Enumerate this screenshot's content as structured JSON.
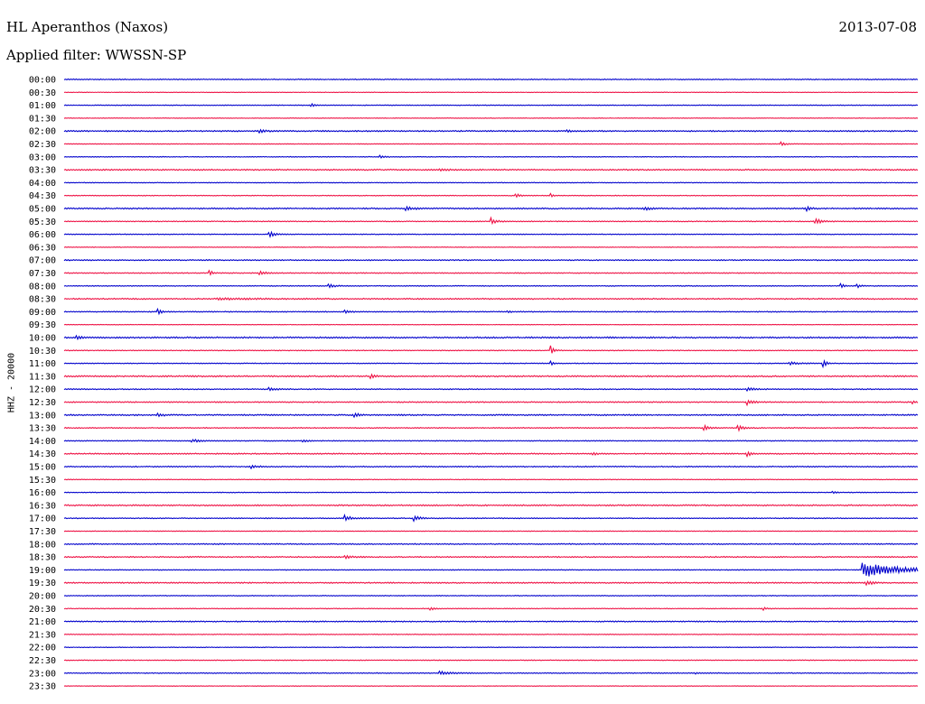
{
  "header": {
    "station": "HL Aperanthos (Naxos)",
    "date": "2013-07-08",
    "filter": "Applied filter: WWSSN-SP",
    "channel": "HHZ - 20000"
  },
  "colors": {
    "trace_a": "#0000cc",
    "trace_b": "#ee1144",
    "background": "#ffffff",
    "text": "#000000"
  },
  "chart_data": {
    "type": "line",
    "title": "HL Aperanthos (Naxos)",
    "subtitle": "Applied filter: WWSSN-SP",
    "ylabel": "HHZ - 20000",
    "xlabel": "",
    "grid": false,
    "legend": "none",
    "rows": [
      {
        "label": "00:00",
        "noise": 1.0
      },
      {
        "label": "00:30",
        "noise": 0.6
      },
      {
        "label": "01:00",
        "noise": 0.8,
        "events": [
          {
            "t": 0.29,
            "amp": 3,
            "dur": 0.004
          }
        ]
      },
      {
        "label": "01:30",
        "noise": 0.6
      },
      {
        "label": "02:00",
        "noise": 1.4,
        "events": [
          {
            "t": 0.23,
            "amp": 3,
            "dur": 0.006
          },
          {
            "t": 0.59,
            "amp": 2,
            "dur": 0.004
          }
        ]
      },
      {
        "label": "02:30",
        "noise": 0.7,
        "events": [
          {
            "t": 0.84,
            "amp": 4,
            "dur": 0.005
          }
        ]
      },
      {
        "label": "03:00",
        "noise": 0.8,
        "events": [
          {
            "t": 0.37,
            "amp": 3,
            "dur": 0.006
          }
        ]
      },
      {
        "label": "03:30",
        "noise": 1.4,
        "events": [
          {
            "t": 0.44,
            "amp": 2,
            "dur": 0.01
          }
        ]
      },
      {
        "label": "04:00",
        "noise": 0.8
      },
      {
        "label": "04:30",
        "noise": 0.8,
        "events": [
          {
            "t": 0.53,
            "amp": 4,
            "dur": 0.004
          },
          {
            "t": 0.57,
            "amp": 4,
            "dur": 0.003
          }
        ]
      },
      {
        "label": "05:00",
        "noise": 1.4,
        "events": [
          {
            "t": 0.4,
            "amp": 4,
            "dur": 0.01
          },
          {
            "t": 0.68,
            "amp": 3,
            "dur": 0.008
          },
          {
            "t": 0.87,
            "amp": 6,
            "dur": 0.004
          }
        ]
      },
      {
        "label": "05:30",
        "noise": 1.0,
        "events": [
          {
            "t": 0.5,
            "amp": 8,
            "dur": 0.005
          },
          {
            "t": 0.88,
            "amp": 6,
            "dur": 0.008
          }
        ]
      },
      {
        "label": "06:00",
        "noise": 0.9,
        "events": [
          {
            "t": 0.24,
            "amp": 7,
            "dur": 0.006
          }
        ]
      },
      {
        "label": "06:30",
        "noise": 0.7
      },
      {
        "label": "07:00",
        "noise": 1.2
      },
      {
        "label": "07:30",
        "noise": 1.0,
        "events": [
          {
            "t": 0.17,
            "amp": 6,
            "dur": 0.004
          },
          {
            "t": 0.23,
            "amp": 4,
            "dur": 0.006
          }
        ]
      },
      {
        "label": "08:00",
        "noise": 0.9,
        "events": [
          {
            "t": 0.31,
            "amp": 4,
            "dur": 0.006
          },
          {
            "t": 0.91,
            "amp": 6,
            "dur": 0.003
          },
          {
            "t": 0.93,
            "amp": 4,
            "dur": 0.003
          }
        ]
      },
      {
        "label": "08:30",
        "noise": 1.4,
        "events": [
          {
            "t": 0.18,
            "amp": 2,
            "dur": 0.03
          }
        ]
      },
      {
        "label": "09:00",
        "noise": 1.1,
        "events": [
          {
            "t": 0.11,
            "amp": 8,
            "dur": 0.004
          },
          {
            "t": 0.33,
            "amp": 3,
            "dur": 0.005
          },
          {
            "t": 0.52,
            "amp": 2,
            "dur": 0.006
          }
        ]
      },
      {
        "label": "09:30",
        "noise": 0.6
      },
      {
        "label": "10:00",
        "noise": 1.6,
        "events": [
          {
            "t": 0.015,
            "amp": 4,
            "dur": 0.006
          }
        ]
      },
      {
        "label": "10:30",
        "noise": 0.9,
        "events": [
          {
            "t": 0.57,
            "amp": 12,
            "dur": 0.003
          }
        ]
      },
      {
        "label": "11:00",
        "noise": 0.9,
        "events": [
          {
            "t": 0.57,
            "amp": 6,
            "dur": 0.003
          },
          {
            "t": 0.85,
            "amp": 3,
            "dur": 0.01
          },
          {
            "t": 0.89,
            "amp": 8,
            "dur": 0.003
          }
        ]
      },
      {
        "label": "11:30",
        "noise": 1.5,
        "events": [
          {
            "t": 0.36,
            "amp": 4,
            "dur": 0.004
          }
        ]
      },
      {
        "label": "12:00",
        "noise": 1.1,
        "events": [
          {
            "t": 0.24,
            "amp": 3,
            "dur": 0.01
          },
          {
            "t": 0.8,
            "amp": 3,
            "dur": 0.01
          }
        ]
      },
      {
        "label": "12:30",
        "noise": 1.2,
        "events": [
          {
            "t": 0.8,
            "amp": 7,
            "dur": 0.006
          },
          {
            "t": 0.995,
            "amp": 3,
            "dur": 0.004
          }
        ]
      },
      {
        "label": "13:00",
        "noise": 1.4,
        "events": [
          {
            "t": 0.11,
            "amp": 3,
            "dur": 0.006
          },
          {
            "t": 0.34,
            "amp": 7,
            "dur": 0.004
          }
        ]
      },
      {
        "label": "13:30",
        "noise": 1.1,
        "events": [
          {
            "t": 0.75,
            "amp": 5,
            "dur": 0.006
          },
          {
            "t": 0.79,
            "amp": 6,
            "dur": 0.006
          }
        ]
      },
      {
        "label": "14:00",
        "noise": 1.0,
        "events": [
          {
            "t": 0.15,
            "amp": 3,
            "dur": 0.01
          },
          {
            "t": 0.28,
            "amp": 2,
            "dur": 0.008
          }
        ]
      },
      {
        "label": "14:30",
        "noise": 1.3,
        "events": [
          {
            "t": 0.62,
            "amp": 3,
            "dur": 0.005
          },
          {
            "t": 0.8,
            "amp": 6,
            "dur": 0.004
          }
        ]
      },
      {
        "label": "15:00",
        "noise": 1.2,
        "events": [
          {
            "t": 0.22,
            "amp": 3,
            "dur": 0.006
          }
        ]
      },
      {
        "label": "15:30",
        "noise": 0.7
      },
      {
        "label": "16:00",
        "noise": 0.8,
        "events": [
          {
            "t": 0.9,
            "amp": 3,
            "dur": 0.004
          }
        ]
      },
      {
        "label": "16:30",
        "noise": 1.4
      },
      {
        "label": "17:00",
        "noise": 1.0,
        "events": [
          {
            "t": 0.33,
            "amp": 7,
            "dur": 0.006
          },
          {
            "t": 0.41,
            "amp": 6,
            "dur": 0.006
          }
        ]
      },
      {
        "label": "17:30",
        "noise": 0.7
      },
      {
        "label": "18:00",
        "noise": 1.2
      },
      {
        "label": "18:30",
        "noise": 1.3,
        "events": [
          {
            "t": 0.33,
            "amp": 3,
            "dur": 0.006
          }
        ]
      },
      {
        "label": "19:00",
        "noise": 0.9,
        "events": [
          {
            "t": 0.935,
            "amp": 18,
            "dur": 0.04
          }
        ]
      },
      {
        "label": "19:30",
        "noise": 1.3,
        "events": [
          {
            "t": 0.94,
            "amp": 6,
            "dur": 0.006
          }
        ]
      },
      {
        "label": "20:00",
        "noise": 0.8
      },
      {
        "label": "20:30",
        "noise": 0.8,
        "events": [
          {
            "t": 0.43,
            "amp": 3,
            "dur": 0.004
          },
          {
            "t": 0.82,
            "amp": 3,
            "dur": 0.004
          }
        ]
      },
      {
        "label": "21:00",
        "noise": 1.2
      },
      {
        "label": "21:30",
        "noise": 0.8
      },
      {
        "label": "22:00",
        "noise": 0.7
      },
      {
        "label": "22:30",
        "noise": 0.8
      },
      {
        "label": "23:00",
        "noise": 1.0,
        "events": [
          {
            "t": 0.44,
            "amp": 4,
            "dur": 0.012
          },
          {
            "t": 0.74,
            "amp": 2,
            "dur": 0.006
          }
        ]
      },
      {
        "label": "23:30",
        "noise": 0.6
      }
    ]
  }
}
